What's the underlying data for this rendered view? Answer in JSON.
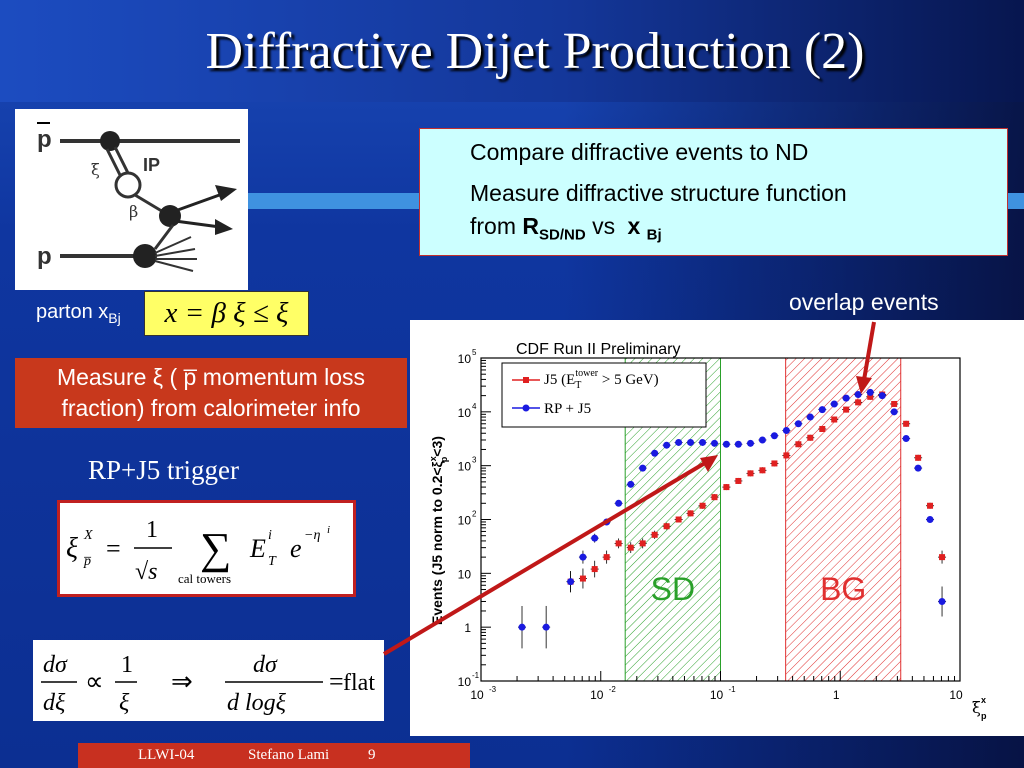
{
  "title": "Diffractive Dijet Production (2)",
  "diagram": {
    "labels": {
      "pbar": "p̅",
      "xi": "ξ",
      "ip": "IP",
      "beta": "β",
      "p": "p"
    }
  },
  "textbox": {
    "line1": "Compare diffractive events to ND",
    "line2": "Measure diffractive structure function",
    "line3_from": "from",
    "line3_R": "R",
    "line3_Rsub": "SD/ND",
    "line3_vs": "vs",
    "line3_x": "x",
    "line3_xsub": "Bj"
  },
  "parton": {
    "label": "parton x",
    "sub": "Bj"
  },
  "yellow_formula": "x = β ξ ≤ ξ",
  "measure": {
    "line1": "Measure ξ ( p̅ momentum loss",
    "line2": "fraction) from calorimeter info"
  },
  "rp_trigger": "RP+J5 trigger",
  "formula_xi": {
    "lhs": "ξ",
    "lhs_sup": "X",
    "lhs_sub": "p̅",
    "eq": "=",
    "num": "1",
    "den": "√s",
    "sum": "∑",
    "sum_sub": "cal towers",
    "E": "E",
    "E_sup": "i",
    "E_sub": "T",
    "exp": "e",
    "exp_sup": "−η",
    "exp_sup_i": "i"
  },
  "formula_dsig": {
    "dsig": "dσ",
    "dxi": "dξ",
    "prop": "∝",
    "one": "1",
    "xi": "ξ",
    "implies": "⇒",
    "dsig2": "dσ",
    "dlog": "d logξ",
    "eq": "=",
    "flat": "flat"
  },
  "overlap_label": "overlap events",
  "footer": {
    "conf": "LLWI-04",
    "author": "Stefano Lami",
    "page": "9"
  },
  "colors": {
    "j5": "#e02020",
    "rp": "#1a1ae0",
    "sd_hatch": "#2aa02a",
    "bg_hatch": "#e03030"
  },
  "chart_data": {
    "type": "scatter",
    "title": "CDF Run II Preliminary",
    "ylabel_parts": [
      "Events (J5 norm to 0.2<",
      "ξ",
      "x",
      "p",
      "<3)"
    ],
    "xlabel_parts": [
      "ξ",
      "x",
      "p"
    ],
    "log_x": true,
    "log_y": true,
    "xlim": [
      0.001,
      10
    ],
    "ylim": [
      0.1,
      100000
    ],
    "x_ticks": [
      {
        "value": 0.001,
        "label": "10",
        "sup": "-3"
      },
      {
        "value": 0.01,
        "label": "10",
        "sup": "-2"
      },
      {
        "value": 0.1,
        "label": "10",
        "sup": "-1"
      },
      {
        "value": 1,
        "label": "1",
        "sup": ""
      },
      {
        "value": 10,
        "label": "10",
        "sup": ""
      }
    ],
    "y_ticks": [
      {
        "value": 0.1,
        "label": "10",
        "sup": "-1"
      },
      {
        "value": 1,
        "label": "1",
        "sup": ""
      },
      {
        "value": 10,
        "label": "10",
        "sup": ""
      },
      {
        "value": 100,
        "label": "10",
        "sup": "2"
      },
      {
        "value": 1000,
        "label": "10",
        "sup": "3"
      },
      {
        "value": 10000,
        "label": "10",
        "sup": "4"
      },
      {
        "value": 100000,
        "label": "10",
        "sup": "5"
      }
    ],
    "regions": [
      {
        "name": "SD",
        "x_range": [
          0.016,
          0.1
        ],
        "label": "SD",
        "color": "#2aa02a"
      },
      {
        "name": "BG",
        "x_range": [
          0.35,
          3.2
        ],
        "label": "BG",
        "color": "#e03030"
      }
    ],
    "legend": {
      "j5_label": "J5 (E",
      "j5_sub": "T",
      "j5_sup": "tower",
      "j5_tail": " > 5 GeV)",
      "rp_label": "RP + J5"
    },
    "series": [
      {
        "name": "J5",
        "color": "#e02020",
        "x": [
          0.0056,
          0.0071,
          0.0089,
          0.0112,
          0.0141,
          0.0178,
          0.0224,
          0.0282,
          0.0355,
          0.0447,
          0.0562,
          0.0708,
          0.0891,
          0.112,
          0.141,
          0.178,
          0.224,
          0.282,
          0.355,
          0.447,
          0.562,
          0.708,
          0.891,
          1.12,
          1.41,
          1.78,
          2.24,
          2.82,
          3.55,
          4.47,
          5.62,
          7.08
        ],
        "y": [
          7,
          8,
          12,
          20,
          36,
          30,
          36,
          52,
          75,
          100,
          130,
          180,
          260,
          400,
          520,
          720,
          820,
          1100,
          1550,
          2500,
          3300,
          4800,
          7200,
          11000,
          15000,
          19000,
          21000,
          14000,
          6000,
          1400,
          180,
          20
        ]
      },
      {
        "name": "RP + J5",
        "color": "#1a1ae0",
        "x": [
          0.0022,
          0.0035,
          0.0056,
          0.0071,
          0.0089,
          0.0112,
          0.0141,
          0.0178,
          0.0224,
          0.0282,
          0.0355,
          0.0447,
          0.0562,
          0.0708,
          0.0891,
          0.112,
          0.141,
          0.178,
          0.224,
          0.282,
          0.355,
          0.447,
          0.562,
          0.708,
          0.891,
          1.12,
          1.41,
          1.78,
          2.24,
          2.82,
          3.55,
          4.47,
          5.62,
          7.08
        ],
        "y": [
          1,
          1,
          7,
          20,
          45,
          90,
          200,
          450,
          900,
          1700,
          2400,
          2700,
          2700,
          2700,
          2600,
          2500,
          2500,
          2600,
          3000,
          3600,
          4500,
          6000,
          8000,
          11000,
          14000,
          18000,
          21000,
          23000,
          20000,
          10000,
          3200,
          900,
          100,
          3
        ]
      }
    ]
  }
}
